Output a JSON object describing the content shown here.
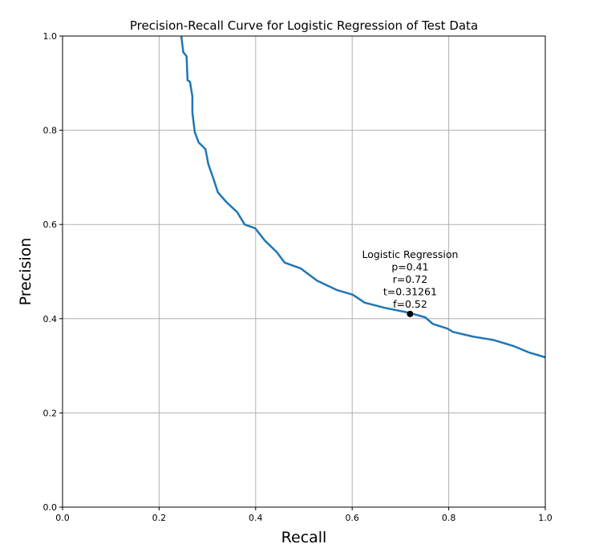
{
  "chart_data": {
    "type": "line",
    "title": "Precision-Recall Curve for Logistic Regression of Test Data",
    "xlabel": "Recall",
    "ylabel": "Precision",
    "xlim": [
      0,
      1
    ],
    "ylim": [
      0,
      1
    ],
    "xticks": [
      "0.0",
      "0.2",
      "0.4",
      "0.6",
      "0.8",
      "1.0"
    ],
    "yticks": [
      "0.0",
      "0.2",
      "0.4",
      "0.6",
      "0.8",
      "1.0"
    ],
    "grid": true,
    "line_color": "#1f77b4",
    "series": [
      {
        "x": [
          0.246,
          0.25,
          0.257,
          0.259,
          0.264,
          0.269,
          0.269,
          0.274,
          0.282,
          0.296,
          0.302,
          0.312,
          0.322,
          0.339,
          0.362,
          0.377,
          0.399,
          0.419,
          0.444,
          0.46,
          0.493,
          0.527,
          0.568,
          0.601,
          0.626,
          0.668,
          0.716,
          0.751,
          0.767,
          0.797,
          0.809,
          0.85,
          0.892,
          0.934,
          0.967,
          1.0
        ],
        "y": [
          1.0,
          0.966,
          0.957,
          0.906,
          0.903,
          0.872,
          0.838,
          0.796,
          0.774,
          0.76,
          0.728,
          0.699,
          0.668,
          0.648,
          0.626,
          0.6,
          0.592,
          0.566,
          0.541,
          0.519,
          0.507,
          0.481,
          0.461,
          0.451,
          0.434,
          0.423,
          0.413,
          0.403,
          0.389,
          0.379,
          0.372,
          0.362,
          0.355,
          0.342,
          0.328,
          0.318
        ]
      }
    ],
    "annotation": {
      "point": {
        "x": 0.72,
        "y": 0.41
      },
      "lines": [
        "Logistic Regression",
        "p=0.41",
        "r=0.72",
        "t=0.31261",
        "f=0.52"
      ]
    }
  }
}
